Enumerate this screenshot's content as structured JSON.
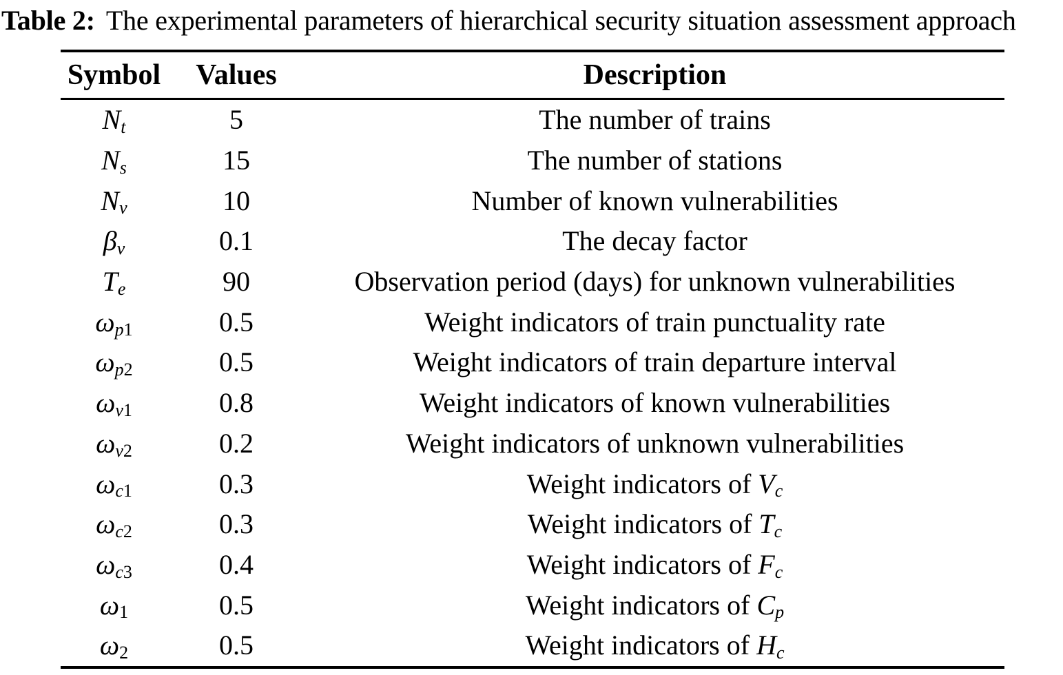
{
  "colors": {
    "text": "#000000",
    "background": "#ffffff"
  },
  "caption": {
    "label": "Table 2:",
    "text": "The experimental parameters of hierarchical security situation assessment approach"
  },
  "table": {
    "headers": [
      "Symbol",
      "Values",
      "Description"
    ],
    "rows": [
      {
        "symbol": {
          "base": "N",
          "sub_it": "t",
          "sub_up": ""
        },
        "value": "5",
        "desc": {
          "text": "The number of trains",
          "math_base": "",
          "math_sub": ""
        }
      },
      {
        "symbol": {
          "base": "N",
          "sub_it": "s",
          "sub_up": ""
        },
        "value": "15",
        "desc": {
          "text": "The number of stations",
          "math_base": "",
          "math_sub": ""
        }
      },
      {
        "symbol": {
          "base": "N",
          "sub_it": "v",
          "sub_up": ""
        },
        "value": "10",
        "desc": {
          "text": "Number of known vulnerabilities",
          "math_base": "",
          "math_sub": ""
        }
      },
      {
        "symbol": {
          "base": "β",
          "sub_it": "v",
          "sub_up": ""
        },
        "value": "0.1",
        "desc": {
          "text": "The decay factor",
          "math_base": "",
          "math_sub": ""
        }
      },
      {
        "symbol": {
          "base": "T",
          "sub_it": "e",
          "sub_up": ""
        },
        "value": "90",
        "desc": {
          "text": "Observation period (days) for unknown vulnerabilities",
          "math_base": "",
          "math_sub": ""
        }
      },
      {
        "symbol": {
          "base": "ω",
          "sub_it": "p",
          "sub_up": "1"
        },
        "value": "0.5",
        "desc": {
          "text": "Weight indicators of train punctuality rate",
          "math_base": "",
          "math_sub": ""
        }
      },
      {
        "symbol": {
          "base": "ω",
          "sub_it": "p",
          "sub_up": "2"
        },
        "value": "0.5",
        "desc": {
          "text": "Weight indicators of train departure interval",
          "math_base": "",
          "math_sub": ""
        }
      },
      {
        "symbol": {
          "base": "ω",
          "sub_it": "v",
          "sub_up": "1"
        },
        "value": "0.8",
        "desc": {
          "text": "Weight indicators of known vulnerabilities",
          "math_base": "",
          "math_sub": ""
        }
      },
      {
        "symbol": {
          "base": "ω",
          "sub_it": "v",
          "sub_up": "2"
        },
        "value": "0.2",
        "desc": {
          "text": "Weight indicators of unknown vulnerabilities",
          "math_base": "",
          "math_sub": ""
        }
      },
      {
        "symbol": {
          "base": "ω",
          "sub_it": "c",
          "sub_up": "1"
        },
        "value": "0.3",
        "desc": {
          "text": "Weight indicators of ",
          "math_base": "V",
          "math_sub": "c"
        }
      },
      {
        "symbol": {
          "base": "ω",
          "sub_it": "c",
          "sub_up": "2"
        },
        "value": "0.3",
        "desc": {
          "text": "Weight indicators of ",
          "math_base": "T",
          "math_sub": "c"
        }
      },
      {
        "symbol": {
          "base": "ω",
          "sub_it": "c",
          "sub_up": "3"
        },
        "value": "0.4",
        "desc": {
          "text": "Weight indicators of ",
          "math_base": "F",
          "math_sub": "c"
        }
      },
      {
        "symbol": {
          "base": "ω",
          "sub_it": "",
          "sub_up": "1"
        },
        "value": "0.5",
        "desc": {
          "text": "Weight indicators of ",
          "math_base": "C",
          "math_sub": "p"
        }
      },
      {
        "symbol": {
          "base": "ω",
          "sub_it": "",
          "sub_up": "2"
        },
        "value": "0.5",
        "desc": {
          "text": "Weight indicators of ",
          "math_base": "H",
          "math_sub": "c"
        }
      }
    ]
  }
}
